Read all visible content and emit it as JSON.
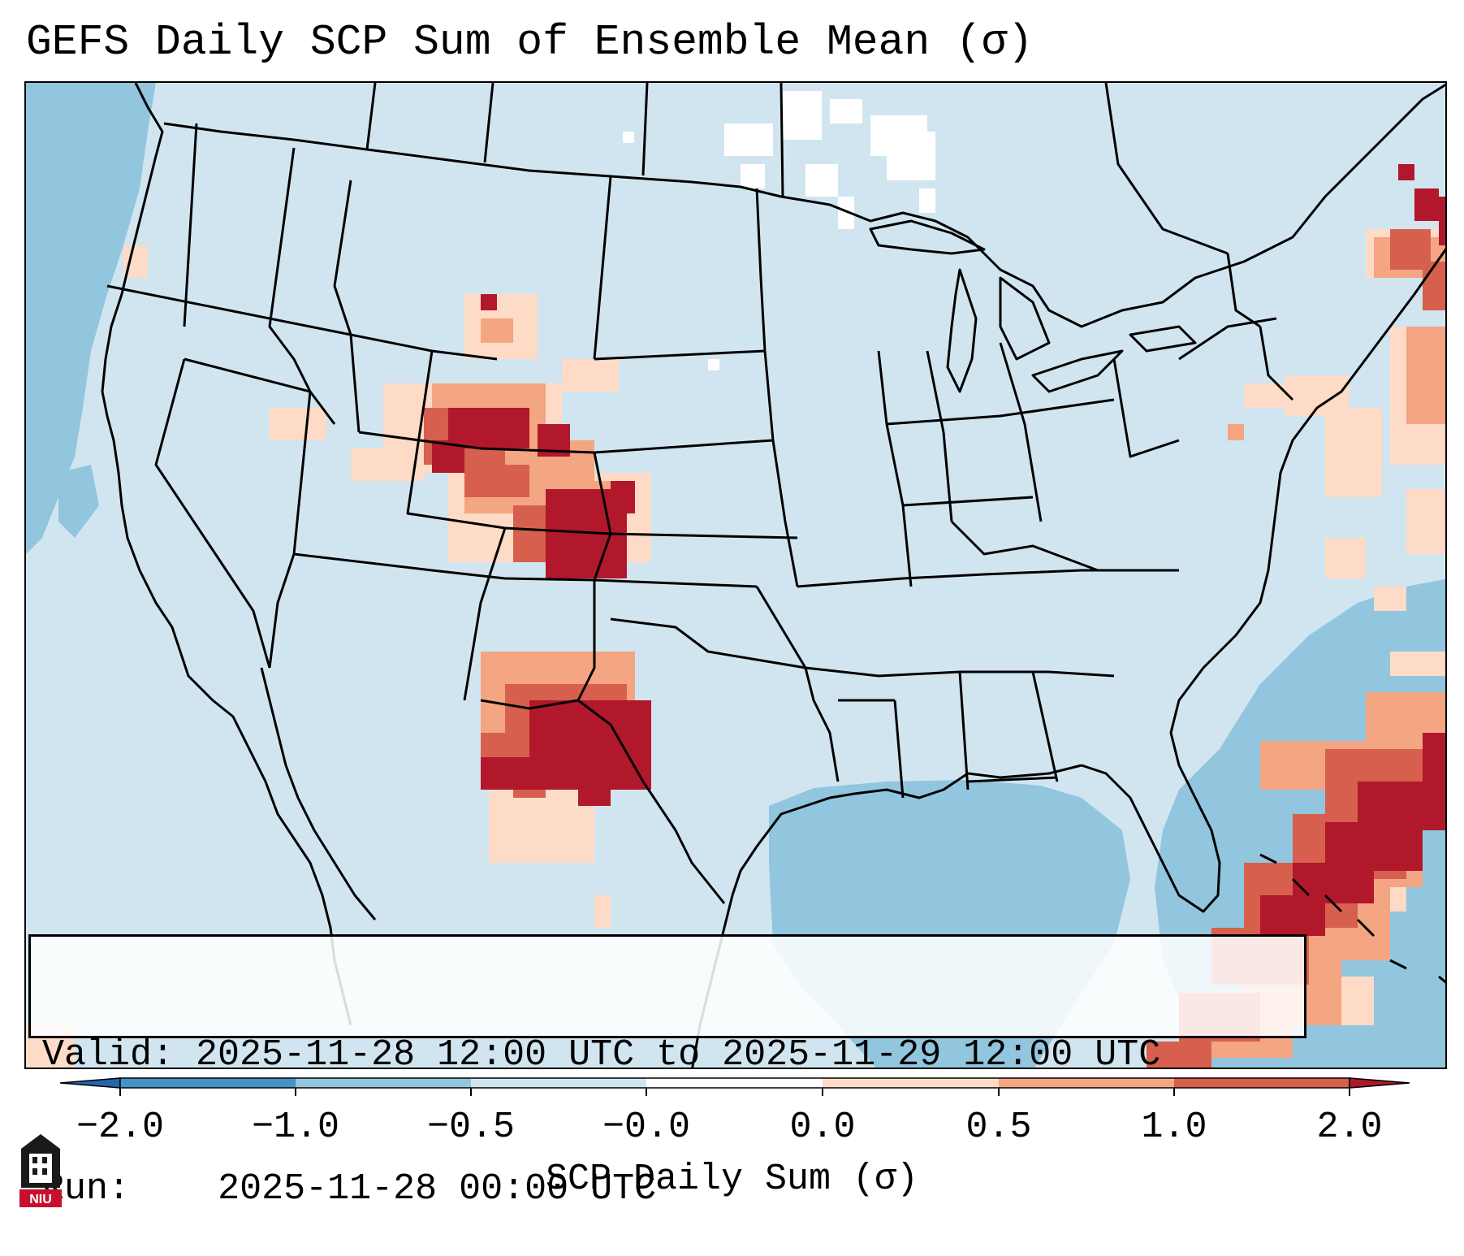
{
  "title": "GEFS Daily SCP Sum of Ensemble Mean (σ)",
  "info": {
    "valid_label": "Valid:",
    "valid_value": "2025-11-28 12:00 UTC to 2025-11-29 12:00 UTC",
    "run_label": "Run:",
    "run_value": "2025-11-28 00:00 UTC"
  },
  "colorbar": {
    "label": "SCP Daily Sum (σ)",
    "ticks": [
      "−2.0",
      "−1.0",
      "−0.5",
      "−0.0",
      "0.0",
      "0.5",
      "1.0",
      "2.0"
    ],
    "colors": [
      "#2166ac",
      "#4393c3",
      "#92c5de",
      "#d1e5f0",
      "#ffffff",
      "#fddbc7",
      "#f4a582",
      "#d6604d",
      "#b2182b"
    ],
    "extend": "both"
  },
  "map": {
    "projection": "Lambert Conformal (CONUS)",
    "background_color": "#d1e5f0",
    "ocean_color": "#92c5de",
    "features": {
      "high_scp_regions": [
        "Central Rockies / Wyoming-Colorado",
        "Eastern Colorado / Western Kansas",
        "West Texas",
        "Western Atlantic off Southeast US",
        "Northern Maine / Maritimes"
      ]
    }
  },
  "logo": {
    "text": "NIU"
  }
}
